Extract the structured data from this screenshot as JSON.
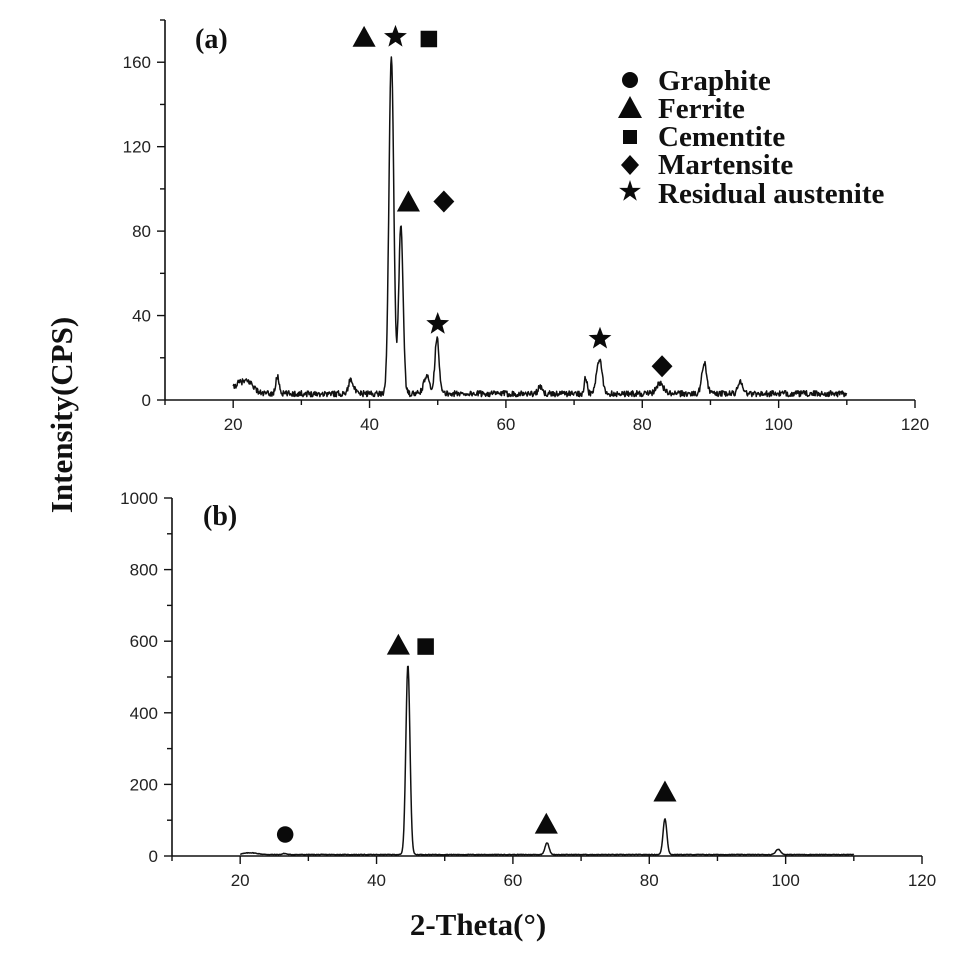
{
  "chart_data": {
    "type": "line",
    "ylabel": "Intensity(CPS)",
    "xlabel": "2-Theta(°)",
    "legend": {
      "placement": "top-right of panel (a)",
      "items": [
        {
          "marker": "circle",
          "label": "Graphite"
        },
        {
          "marker": "triangle",
          "label": "Ferrite"
        },
        {
          "marker": "square",
          "label": "Cementite"
        },
        {
          "marker": "diamond",
          "label": "Martensite"
        },
        {
          "marker": "star",
          "label": "Residual austenite"
        }
      ]
    },
    "panels": [
      {
        "label": "(a)",
        "xlim": [
          10,
          120
        ],
        "ylim": [
          0,
          180
        ],
        "x_ticks": [
          20,
          40,
          60,
          80,
          100,
          120
        ],
        "y_ticks": [
          0,
          40,
          80,
          120,
          160
        ],
        "baseline": 3,
        "noise": 1.4,
        "x_range": [
          20,
          110
        ],
        "peaks": [
          {
            "x": 21.0,
            "y": 5,
            "w": 0.9
          },
          {
            "x": 22.5,
            "y": 4,
            "w": 0.7
          },
          {
            "x": 26.5,
            "y": 8,
            "w": 0.25
          },
          {
            "x": 37.3,
            "y": 7,
            "w": 0.35
          },
          {
            "x": 43.2,
            "y": 160,
            "w": 0.35
          },
          {
            "x": 44.6,
            "y": 80,
            "w": 0.32
          },
          {
            "x": 48.4,
            "y": 8,
            "w": 0.45
          },
          {
            "x": 49.9,
            "y": 27,
            "w": 0.3
          },
          {
            "x": 65.0,
            "y": 3,
            "w": 0.3
          },
          {
            "x": 71.7,
            "y": 8,
            "w": 0.2
          },
          {
            "x": 73.7,
            "y": 16,
            "w": 0.4
          },
          {
            "x": 82.6,
            "y": 5,
            "w": 0.5
          },
          {
            "x": 89.1,
            "y": 15,
            "w": 0.35
          },
          {
            "x": 94.4,
            "y": 6,
            "w": 0.35
          }
        ],
        "phase_markers": [
          {
            "marker": "triangle",
            "x": 39.2,
            "y": 172
          },
          {
            "marker": "star",
            "x": 43.8,
            "y": 172
          },
          {
            "marker": "square",
            "x": 48.7,
            "y": 171
          },
          {
            "marker": "triangle",
            "x": 45.7,
            "y": 94
          },
          {
            "marker": "diamond",
            "x": 50.9,
            "y": 94
          },
          {
            "marker": "star",
            "x": 50.0,
            "y": 36
          },
          {
            "marker": "star",
            "x": 73.8,
            "y": 29
          },
          {
            "marker": "diamond",
            "x": 82.9,
            "y": 16
          }
        ]
      },
      {
        "label": "(b)",
        "xlim": [
          10,
          120
        ],
        "ylim": [
          0,
          1000
        ],
        "x_ticks": [
          20,
          40,
          60,
          80,
          100,
          120
        ],
        "y_ticks": [
          0,
          200,
          400,
          600,
          800,
          1000
        ],
        "baseline": 4,
        "noise": 0.8,
        "x_range": [
          20,
          110
        ],
        "peaks": [
          {
            "x": 21.5,
            "y": 5,
            "w": 1.0
          },
          {
            "x": 26.5,
            "y": 3,
            "w": 0.3
          },
          {
            "x": 44.6,
            "y": 530,
            "w": 0.3
          },
          {
            "x": 65.0,
            "y": 33,
            "w": 0.3
          },
          {
            "x": 82.3,
            "y": 100,
            "w": 0.28
          },
          {
            "x": 98.9,
            "y": 15,
            "w": 0.35
          }
        ],
        "phase_markers": [
          {
            "marker": "circle",
            "x": 26.6,
            "y": 60
          },
          {
            "marker": "triangle",
            "x": 43.2,
            "y": 590
          },
          {
            "marker": "square",
            "x": 47.2,
            "y": 585
          },
          {
            "marker": "triangle",
            "x": 64.9,
            "y": 90
          },
          {
            "marker": "triangle",
            "x": 82.3,
            "y": 180
          }
        ]
      }
    ]
  }
}
